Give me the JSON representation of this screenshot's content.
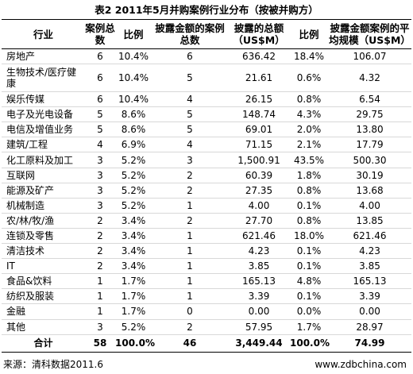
{
  "title": "表2  2011年5月并购案例行业分布（按被并购方）",
  "headers": {
    "industry": "行业",
    "case_count": "案例总数",
    "ratio1": "比例",
    "disclosed_count": "披露金额的案例总数",
    "disclosed_amount": "披露的总额（US$M）",
    "ratio2": "比例",
    "avg_size": "披露金额案例的平均规模（US$M）"
  },
  "rows": [
    {
      "industry": "房地产",
      "count": "6",
      "pct": "10.4%",
      "disclosed": "6",
      "amount": "636.42",
      "amount_pct": "18.4%",
      "avg": "106.07"
    },
    {
      "industry": "生物技术/医疗健康",
      "count": "6",
      "pct": "10.4%",
      "disclosed": "5",
      "amount": "21.61",
      "amount_pct": "0.6%",
      "avg": "4.32"
    },
    {
      "industry": "娱乐传媒",
      "count": "6",
      "pct": "10.4%",
      "disclosed": "4",
      "amount": "26.15",
      "amount_pct": "0.8%",
      "avg": "6.54"
    },
    {
      "industry": "电子及光电设备",
      "count": "5",
      "pct": "8.6%",
      "disclosed": "5",
      "amount": "148.74",
      "amount_pct": "4.3%",
      "avg": "29.75"
    },
    {
      "industry": "电信及增值业务",
      "count": "5",
      "pct": "8.6%",
      "disclosed": "5",
      "amount": "69.01",
      "amount_pct": "2.0%",
      "avg": "13.80"
    },
    {
      "industry": "建筑/工程",
      "count": "4",
      "pct": "6.9%",
      "disclosed": "4",
      "amount": "71.15",
      "amount_pct": "2.1%",
      "avg": "17.79"
    },
    {
      "industry": "化工原料及加工",
      "count": "3",
      "pct": "5.2%",
      "disclosed": "3",
      "amount": "1,500.91",
      "amount_pct": "43.5%",
      "avg": "500.30"
    },
    {
      "industry": "互联网",
      "count": "3",
      "pct": "5.2%",
      "disclosed": "2",
      "amount": "60.39",
      "amount_pct": "1.8%",
      "avg": "30.19"
    },
    {
      "industry": "能源及矿产",
      "count": "3",
      "pct": "5.2%",
      "disclosed": "2",
      "amount": "27.35",
      "amount_pct": "0.8%",
      "avg": "13.68"
    },
    {
      "industry": "机械制造",
      "count": "3",
      "pct": "5.2%",
      "disclosed": "1",
      "amount": "4.00",
      "amount_pct": "0.1%",
      "avg": "4.00"
    },
    {
      "industry": "农/林/牧/渔",
      "count": "2",
      "pct": "3.4%",
      "disclosed": "2",
      "amount": "27.70",
      "amount_pct": "0.8%",
      "avg": "13.85"
    },
    {
      "industry": "连锁及零售",
      "count": "2",
      "pct": "3.4%",
      "disclosed": "1",
      "amount": "621.46",
      "amount_pct": "18.0%",
      "avg": "621.46"
    },
    {
      "industry": "清洁技术",
      "count": "2",
      "pct": "3.4%",
      "disclosed": "1",
      "amount": "4.23",
      "amount_pct": "0.1%",
      "avg": "4.23"
    },
    {
      "industry": "IT",
      "count": "2",
      "pct": "3.4%",
      "disclosed": "1",
      "amount": "3.85",
      "amount_pct": "0.1%",
      "avg": "3.85"
    },
    {
      "industry": "食品&饮料",
      "count": "1",
      "pct": "1.7%",
      "disclosed": "1",
      "amount": "165.13",
      "amount_pct": "4.8%",
      "avg": "165.13"
    },
    {
      "industry": "纺织及服装",
      "count": "1",
      "pct": "1.7%",
      "disclosed": "1",
      "amount": "3.39",
      "amount_pct": "0.1%",
      "avg": "3.39"
    },
    {
      "industry": "金融",
      "count": "1",
      "pct": "1.7%",
      "disclosed": "0",
      "amount": "0.00",
      "amount_pct": "0.0%",
      "avg": "0.00"
    },
    {
      "industry": "其他",
      "count": "3",
      "pct": "5.2%",
      "disclosed": "2",
      "amount": "57.95",
      "amount_pct": "1.7%",
      "avg": "28.97"
    }
  ],
  "total": {
    "industry": "合计",
    "count": "58",
    "pct": "100.0%",
    "disclosed": "46",
    "amount": "3,449.44",
    "amount_pct": "100.0%",
    "avg": "74.99"
  },
  "footer": {
    "source": "来源：清科数据2011.6",
    "website": "www.zdbchina.com"
  }
}
